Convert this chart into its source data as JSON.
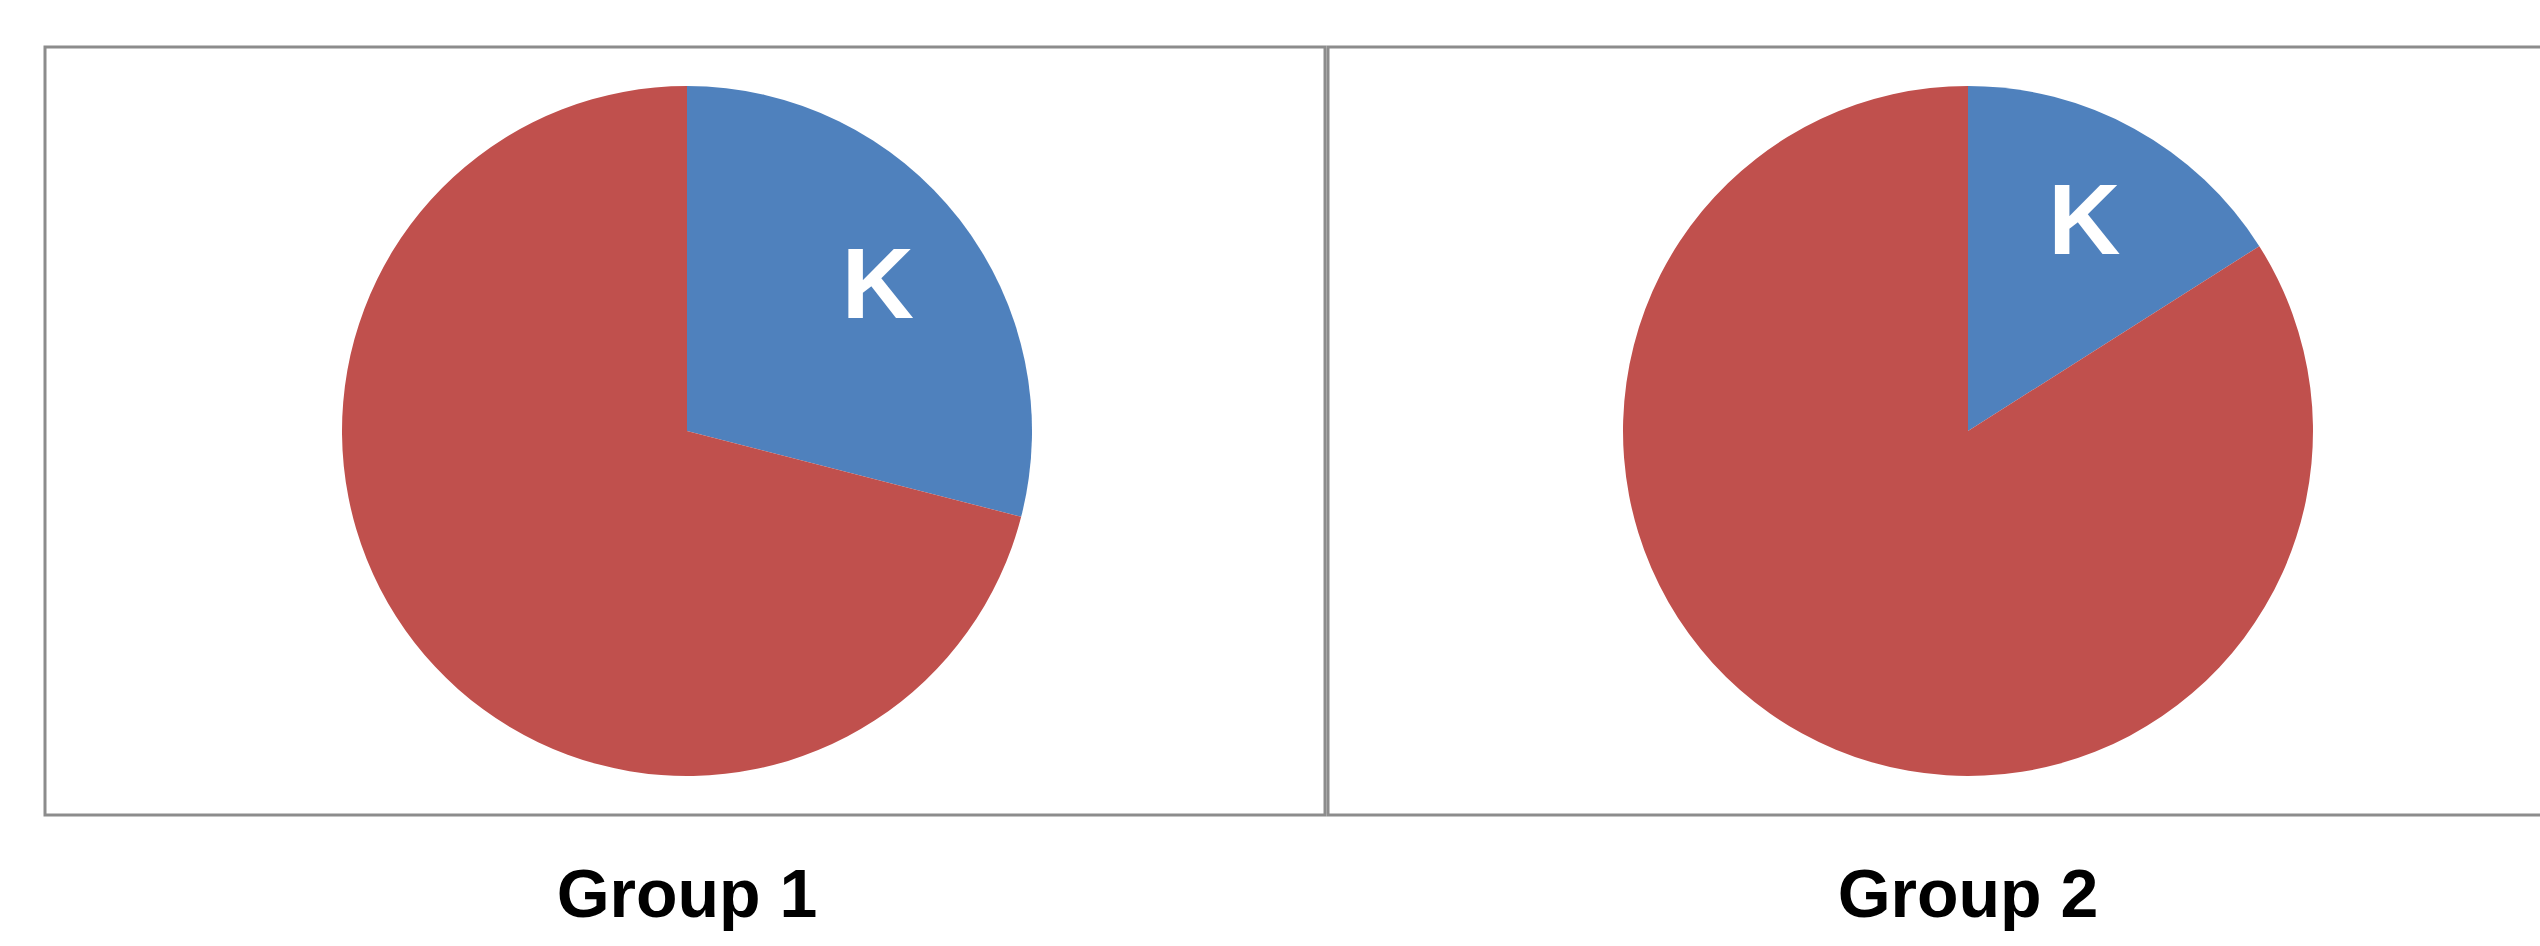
{
  "chart_data": [
    {
      "type": "pie",
      "title": "Group 1",
      "categories": [
        "K",
        null
      ],
      "values": [
        29,
        71
      ],
      "colors": [
        "#4f81bd",
        "#c0504d"
      ]
    },
    {
      "type": "pie",
      "title": "Group 2",
      "categories": [
        "K",
        null
      ],
      "values": [
        16,
        84
      ],
      "colors": [
        "#4f81bd",
        "#c0504d"
      ]
    }
  ]
}
